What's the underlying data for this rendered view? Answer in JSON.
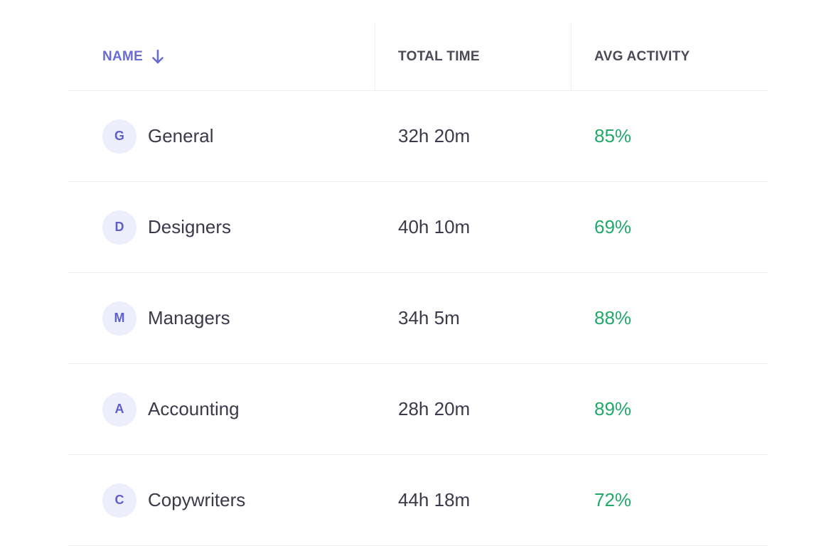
{
  "header": {
    "name_label": "NAME",
    "time_label": "TOTAL TIME",
    "activity_label": "AVG ACTIVITY",
    "sort_icon": "arrow-down-icon"
  },
  "colors": {
    "accent": "#6A6BD1",
    "activity_green": "#20A96B",
    "avatar_bg": "#EDEEFB",
    "text": "#3A3A4A"
  },
  "rows": [
    {
      "initial": "G",
      "name": "General",
      "total_time": "32h 20m",
      "avg_activity": "85%"
    },
    {
      "initial": "D",
      "name": "Designers",
      "total_time": "40h 10m",
      "avg_activity": "69%"
    },
    {
      "initial": "M",
      "name": "Managers",
      "total_time": "34h 5m",
      "avg_activity": "88%"
    },
    {
      "initial": "A",
      "name": "Accounting",
      "total_time": "28h 20m",
      "avg_activity": "89%"
    },
    {
      "initial": "C",
      "name": "Copywriters",
      "total_time": "44h 18m",
      "avg_activity": "72%"
    }
  ]
}
